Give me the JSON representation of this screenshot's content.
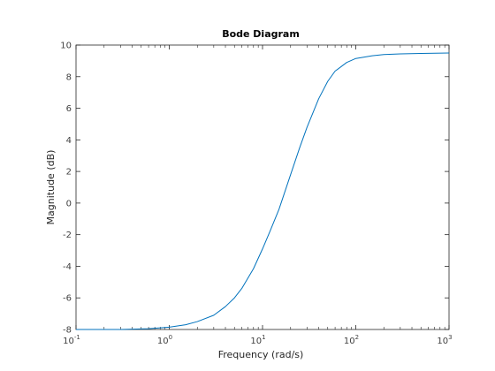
{
  "chart_data": {
    "type": "line",
    "title": "Bode Diagram",
    "xlabel": "Frequency  (rad/s)",
    "ylabel": "Magnitude (dB)",
    "xscale": "log",
    "xlim": [
      0.1,
      1000
    ],
    "ylim": [
      -8,
      10
    ],
    "grid": false,
    "legend": "none",
    "x_ticks": [
      {
        "base": "10",
        "exp": "-1",
        "value": 0.1
      },
      {
        "base": "10",
        "exp": "0",
        "value": 1
      },
      {
        "base": "10",
        "exp": "1",
        "value": 10
      },
      {
        "base": "10",
        "exp": "2",
        "value": 100
      },
      {
        "base": "10",
        "exp": "3",
        "value": 1000
      }
    ],
    "y_ticks": [
      {
        "label": "-8",
        "value": -8
      },
      {
        "label": "-6",
        "value": -6
      },
      {
        "label": "-4",
        "value": -4
      },
      {
        "label": "-2",
        "value": -2
      },
      {
        "label": "0",
        "value": 0
      },
      {
        "label": "2",
        "value": 2
      },
      {
        "label": "4",
        "value": 4
      },
      {
        "label": "6",
        "value": 6
      },
      {
        "label": "8",
        "value": 8
      },
      {
        "label": "10",
        "value": 10
      }
    ],
    "series": [
      {
        "color": "#0072BD",
        "x": [
          0.1,
          0.3,
          0.6,
          1,
          1.5,
          2,
          3,
          4,
          5,
          6,
          8,
          10,
          12,
          15,
          20,
          25,
          30,
          40,
          50,
          60,
          80,
          100,
          150,
          200,
          300,
          500,
          1000
        ],
        "y": [
          -8.0,
          -8.0,
          -7.95,
          -7.85,
          -7.7,
          -7.5,
          -7.1,
          -6.55,
          -6.0,
          -5.4,
          -4.15,
          -2.9,
          -1.8,
          -0.4,
          1.8,
          3.5,
          4.8,
          6.6,
          7.7,
          8.35,
          8.9,
          9.15,
          9.32,
          9.4,
          9.44,
          9.47,
          9.5
        ]
      }
    ]
  },
  "colors": {
    "axes": "#262626",
    "background": "#ffffff"
  }
}
